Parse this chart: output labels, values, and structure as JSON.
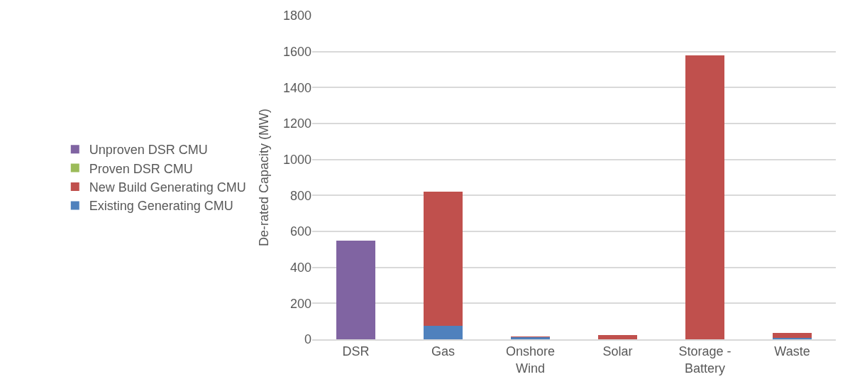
{
  "chart_data": {
    "type": "bar",
    "stacked": true,
    "ylabel": "De-rated Capacity (MW)",
    "categories": [
      "DSR",
      "Gas",
      "Onshore Wind",
      "Solar",
      "Storage - Battery",
      "Waste"
    ],
    "series": [
      {
        "name": "Existing Generating CMU",
        "color": "#4f81bd",
        "values": [
          null,
          75,
          12,
          null,
          null,
          8
        ]
      },
      {
        "name": "New Build Generating CMU",
        "color": "#c0504d",
        "values": [
          null,
          745,
          3,
          25,
          1580,
          27
        ]
      },
      {
        "name": "Proven DSR CMU",
        "color": "#9bbb59",
        "values": [
          null,
          null,
          null,
          null,
          null,
          null
        ]
      },
      {
        "name": "Unproven DSR CMU",
        "color": "#8064a2",
        "values": [
          548,
          null,
          null,
          null,
          null,
          null
        ]
      }
    ],
    "ylim": [
      0,
      1800
    ],
    "yticks": [
      0,
      200,
      400,
      600,
      800,
      1000,
      1200,
      1400,
      1600,
      1800
    ],
    "grid": "y",
    "legend": "left"
  }
}
